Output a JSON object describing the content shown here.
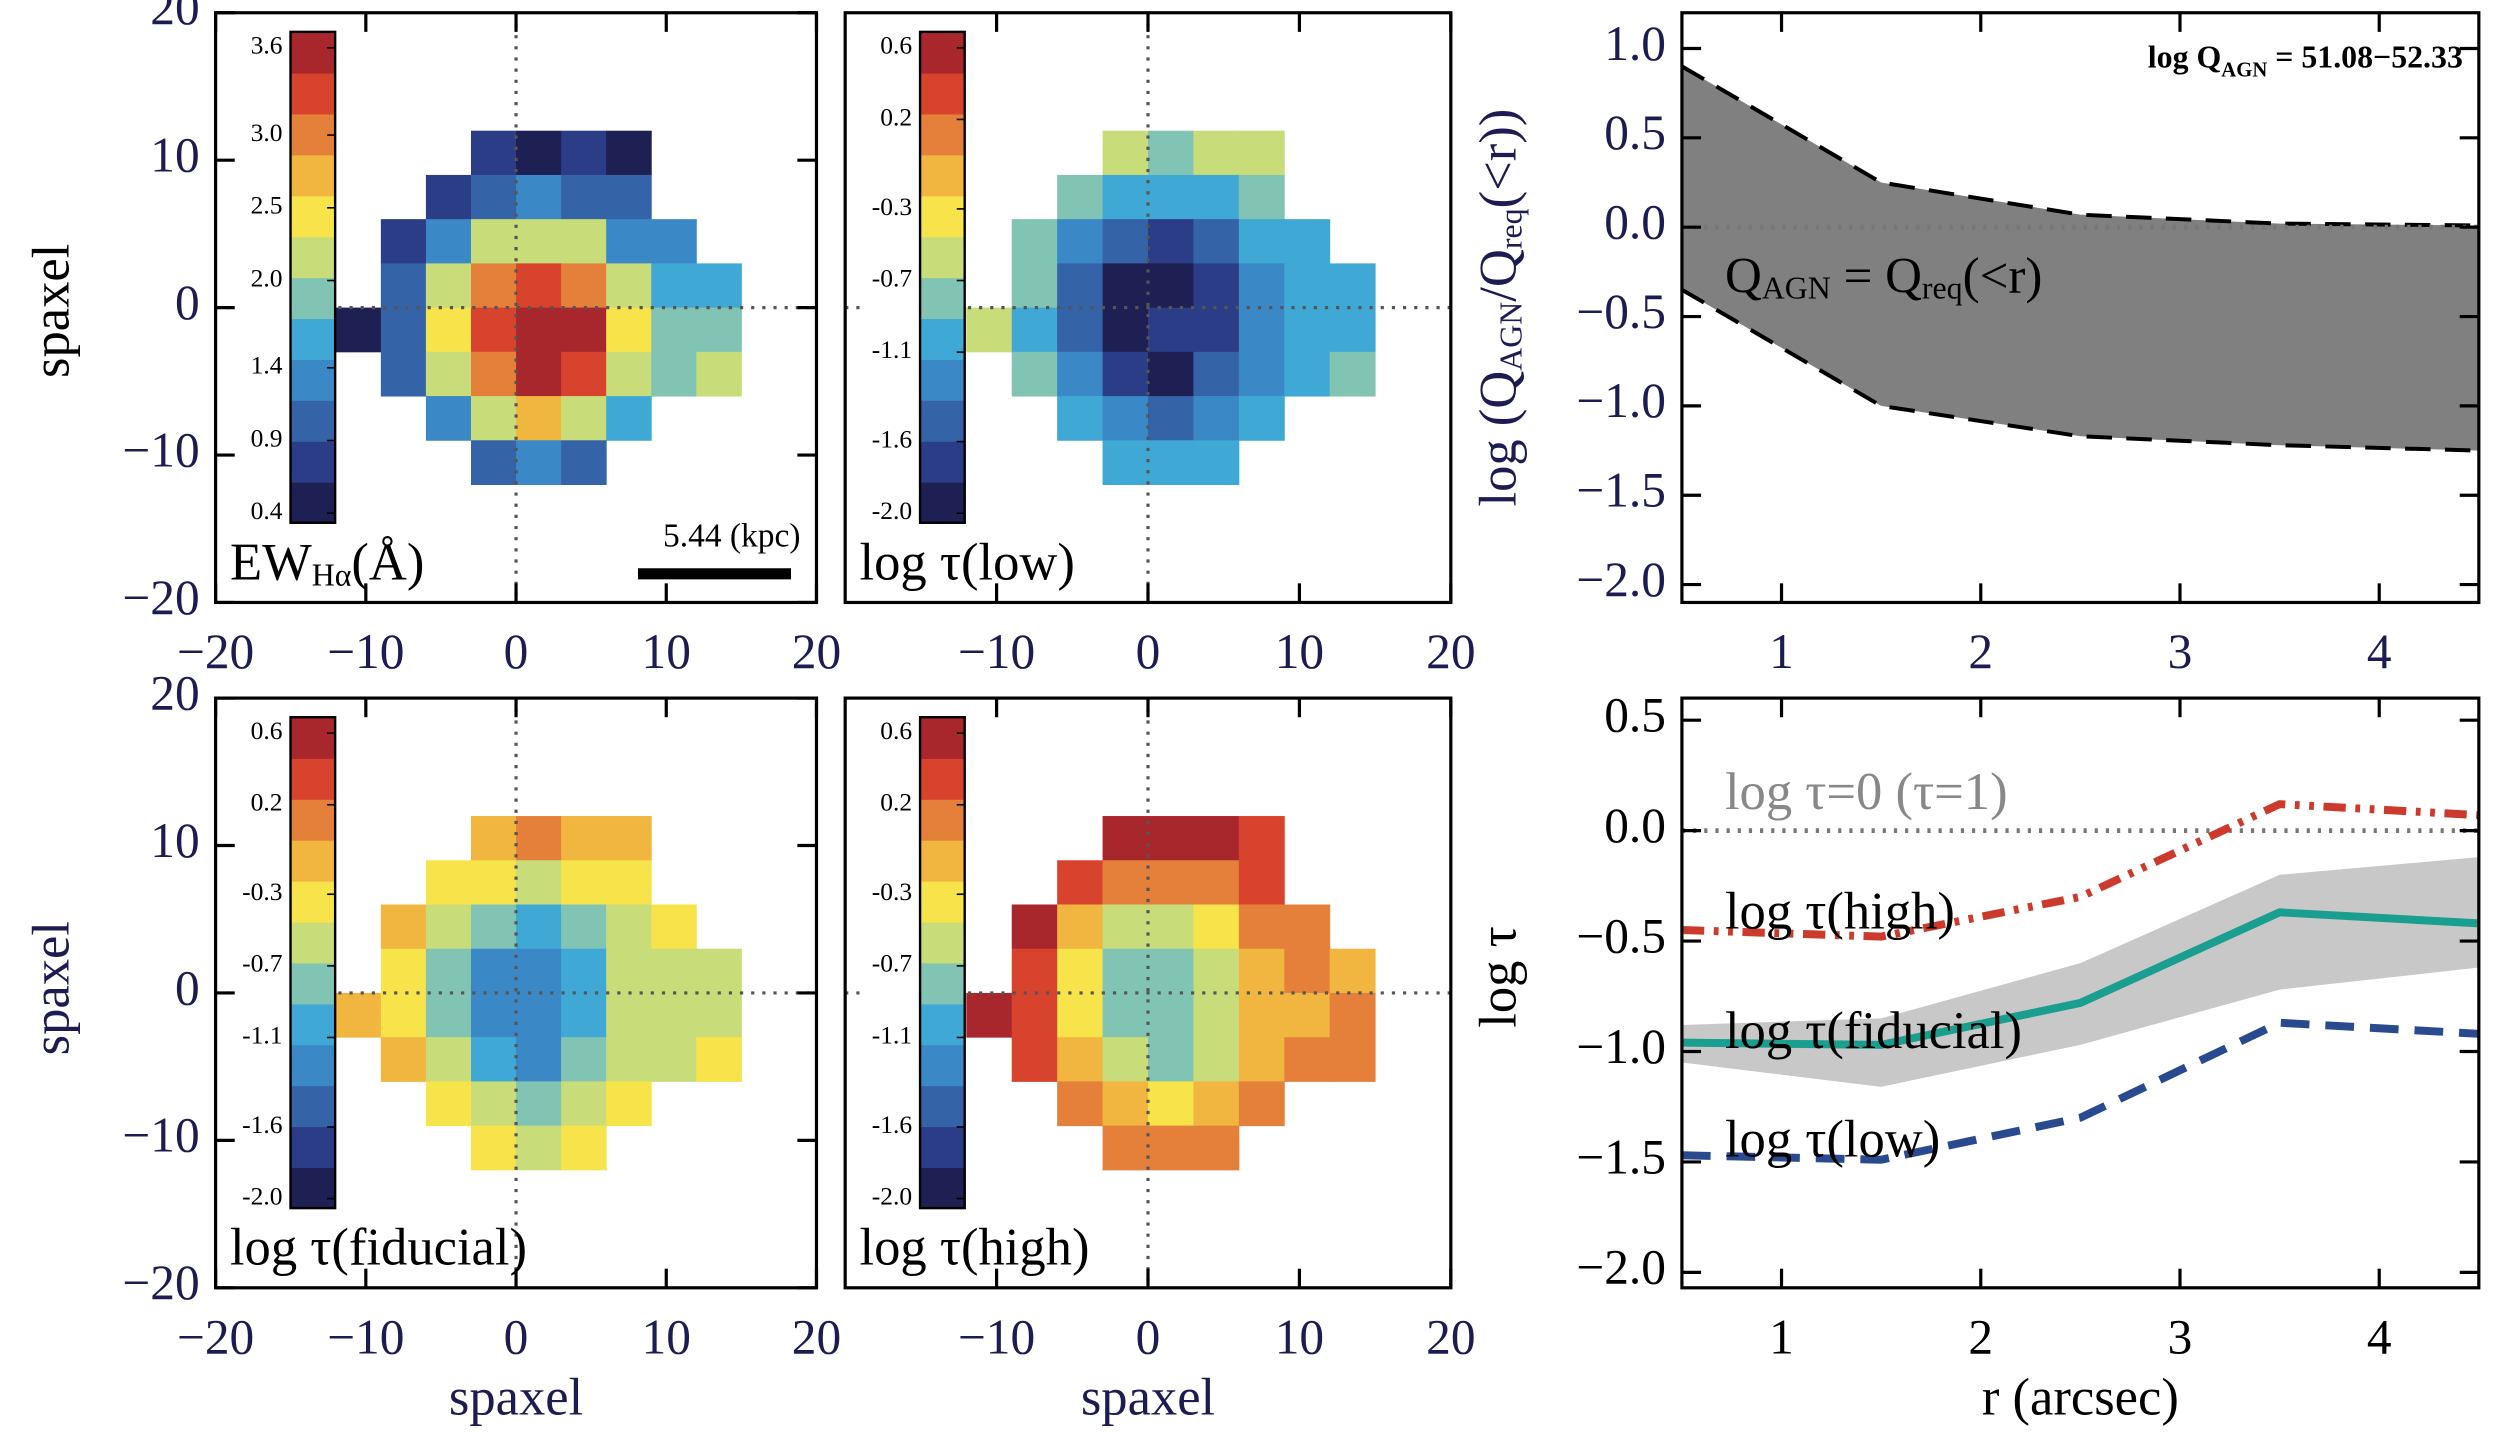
{
  "chart_data": [
    {
      "type": "heatmap",
      "xlim": [
        -20,
        20
      ],
      "ylim": [
        -20,
        20
      ],
      "xticks": [
        {
          "value": -20,
          "label": "−20"
        },
        {
          "value": -10,
          "label": "−10"
        },
        0,
        10,
        20
      ],
      "yticks": [
        {
          "value": -20,
          "label": "−20"
        },
        {
          "value": -10,
          "label": "−10"
        },
        0,
        10,
        20
      ],
      "ylabel": "spaxel",
      "crosshair": [
        0,
        0
      ],
      "xbins": [
        -12,
        -9,
        -6,
        -3,
        0,
        3,
        6,
        9,
        12,
        15
      ],
      "ybins": [
        12,
        9,
        6,
        3,
        0,
        -3,
        -6,
        -9,
        -12
      ],
      "z": [
        [
          null,
          null,
          null,
          0.7,
          0.6,
          0.7,
          0.6,
          null,
          null
        ],
        [
          null,
          null,
          0.9,
          1.2,
          1.3,
          1.2,
          1.0,
          null,
          null
        ],
        [
          null,
          0.8,
          1.4,
          2.0,
          2.2,
          2.0,
          1.4,
          1.4,
          null
        ],
        [
          null,
          1.0,
          2.0,
          2.9,
          3.2,
          3.0,
          2.1,
          1.6,
          1.5
        ],
        [
          0.6,
          1.1,
          2.3,
          3.3,
          3.6,
          3.4,
          2.4,
          1.8,
          1.9
        ],
        [
          null,
          1.0,
          2.1,
          3.0,
          3.4,
          3.1,
          2.2,
          1.9,
          2.1
        ],
        [
          null,
          null,
          1.3,
          2.2,
          2.6,
          2.2,
          1.5,
          null,
          null
        ],
        [
          null,
          null,
          null,
          1.1,
          1.3,
          1.0,
          null,
          null,
          null
        ]
      ],
      "clim": [
        0.4,
        3.6
      ],
      "colors": [
        "#1e1f52",
        "#2b3d86",
        "#3563a8",
        "#3a88c6",
        "#3fa8d4",
        "#82c4b4",
        "#c8dc7a",
        "#f6e44a",
        "#f0b640",
        "#e5803a",
        "#d8432e",
        "#a8272c"
      ],
      "colorbar_ticks": [
        0.4,
        0.9,
        1.4,
        {
          "value": 2,
          "label": "2.0"
        },
        2.5,
        {
          "value": 3,
          "label": "3.0"
        },
        3.6
      ],
      "label": [
        "EW",
        "Hα",
        "(Å)"
      ],
      "scale_bar": "5.44 (kpc)"
    },
    {
      "type": "heatmap",
      "xlim": [
        -20,
        20
      ],
      "ylim": [
        -20,
        20
      ],
      "xticks": [
        {
          "value": -10,
          "label": "−10"
        },
        0,
        10,
        20
      ],
      "crosshair": [
        0,
        0
      ],
      "xbins": [
        -12,
        -9,
        -6,
        -3,
        0,
        3,
        6,
        9,
        12,
        15
      ],
      "ybins": [
        12,
        9,
        6,
        3,
        0,
        -3,
        -6,
        -9,
        -12
      ],
      "z": [
        [
          null,
          null,
          null,
          -0.6,
          -0.8,
          -0.6,
          -0.6,
          null,
          null
        ],
        [
          null,
          null,
          -0.9,
          -1.0,
          -1.1,
          -1.0,
          -0.9,
          null,
          null
        ],
        [
          null,
          -0.8,
          -1.2,
          -1.5,
          -1.6,
          -1.4,
          -1.1,
          -1.0,
          null
        ],
        [
          null,
          -0.9,
          -1.4,
          -1.8,
          -1.9,
          -1.6,
          -1.2,
          -1.1,
          -1.1
        ],
        [
          -0.7,
          -1.0,
          -1.5,
          -1.9,
          -1.7,
          -1.7,
          -1.3,
          -1.1,
          -1.0
        ],
        [
          null,
          -0.8,
          -1.3,
          -1.7,
          -1.8,
          -1.5,
          -1.2,
          -1.1,
          -0.9
        ],
        [
          null,
          null,
          -1.0,
          -1.3,
          -1.4,
          -1.2,
          -1.0,
          null,
          null
        ],
        [
          null,
          null,
          null,
          -1.0,
          -1.1,
          -1.0,
          null,
          null,
          null
        ]
      ],
      "clim": [
        -2.0,
        0.6
      ],
      "colors": [
        "#1e1f52",
        "#2b3d86",
        "#3563a8",
        "#3a88c6",
        "#3fa8d4",
        "#82c4b4",
        "#c8dc7a",
        "#f6e44a",
        "#f0b640",
        "#e5803a",
        "#d8432e",
        "#a8272c"
      ],
      "colorbar_ticks": [
        0.6,
        0.2,
        -0.3,
        -0.7,
        -1.1,
        -1.6,
        {
          "value": -2,
          "label": "-2.0"
        }
      ],
      "label": [
        "log τ(low)"
      ]
    },
    {
      "type": "heatmap",
      "xlim": [
        -20,
        20
      ],
      "ylim": [
        -20,
        20
      ],
      "xticks": [
        {
          "value": -20,
          "label": "−20"
        },
        {
          "value": -10,
          "label": "−10"
        },
        0,
        10,
        20
      ],
      "yticks": [
        {
          "value": -20,
          "label": "−20"
        },
        {
          "value": -10,
          "label": "−10"
        },
        0,
        10,
        20
      ],
      "xlabel": "spaxel",
      "ylabel": "spaxel",
      "crosshair": [
        0,
        0
      ],
      "xbins": [
        -12,
        -9,
        -6,
        -3,
        0,
        3,
        6,
        9,
        12,
        15
      ],
      "ybins": [
        12,
        9,
        6,
        3,
        0,
        -3,
        -6,
        -9,
        -12
      ],
      "z": [
        [
          null,
          null,
          null,
          -0.1,
          0.0,
          -0.1,
          -0.2,
          null,
          null
        ],
        [
          null,
          null,
          -0.3,
          -0.4,
          -0.5,
          -0.4,
          -0.3,
          null,
          null
        ],
        [
          null,
          -0.2,
          -0.6,
          -0.9,
          -1.0,
          -0.8,
          -0.5,
          -0.4,
          null
        ],
        [
          null,
          -0.3,
          -0.8,
          -1.2,
          -1.3,
          -1.0,
          -0.6,
          -0.5,
          -0.6
        ],
        [
          -0.2,
          -0.4,
          -0.9,
          -1.3,
          -1.2,
          -1.1,
          -0.7,
          -0.6,
          -0.5
        ],
        [
          null,
          -0.2,
          -0.7,
          -1.1,
          -1.2,
          -0.9,
          -0.6,
          -0.5,
          -0.4
        ],
        [
          null,
          null,
          -0.4,
          -0.7,
          -0.8,
          -0.6,
          -0.4,
          null,
          null
        ],
        [
          null,
          null,
          null,
          -0.4,
          -0.5,
          -0.4,
          null,
          null,
          null
        ]
      ],
      "clim": [
        -2.0,
        0.6
      ],
      "colors": [
        "#1e1f52",
        "#2b3d86",
        "#3563a8",
        "#3a88c6",
        "#3fa8d4",
        "#82c4b4",
        "#c8dc7a",
        "#f6e44a",
        "#f0b640",
        "#e5803a",
        "#d8432e",
        "#a8272c"
      ],
      "colorbar_ticks": [
        0.6,
        0.2,
        -0.3,
        -0.7,
        -1.1,
        -1.6,
        {
          "value": -2,
          "label": "-2.0"
        }
      ],
      "label": [
        "log τ(fiducial)"
      ]
    },
    {
      "type": "heatmap",
      "xlim": [
        -20,
        20
      ],
      "ylim": [
        -20,
        20
      ],
      "xticks": [
        {
          "value": -10,
          "label": "−10"
        },
        0,
        10,
        20
      ],
      "xlabel": "spaxel",
      "crosshair": [
        0,
        0
      ],
      "xbins": [
        -12,
        -9,
        -6,
        -3,
        0,
        3,
        6,
        9,
        12,
        15
      ],
      "ybins": [
        12,
        9,
        6,
        3,
        0,
        -3,
        -6,
        -9,
        -12
      ],
      "z": [
        [
          null,
          null,
          null,
          0.5,
          0.5,
          0.4,
          0.3,
          null,
          null
        ],
        [
          null,
          null,
          0.3,
          0.1,
          0.0,
          0.1,
          0.2,
          null,
          null
        ],
        [
          null,
          0.4,
          -0.1,
          -0.5,
          -0.6,
          -0.4,
          0.0,
          0.1,
          null
        ],
        [
          null,
          0.3,
          -0.3,
          -0.8,
          -0.9,
          -0.6,
          -0.1,
          0.0,
          -0.1
        ],
        [
          0.4,
          0.2,
          -0.4,
          -0.9,
          -0.8,
          -0.7,
          -0.2,
          -0.1,
          0.0
        ],
        [
          null,
          0.3,
          -0.2,
          -0.7,
          -0.8,
          -0.5,
          -0.1,
          0.0,
          0.1
        ],
        [
          null,
          null,
          0.1,
          -0.2,
          -0.3,
          -0.1,
          0.1,
          null,
          null
        ],
        [
          null,
          null,
          null,
          0.1,
          0.0,
          0.1,
          null,
          null,
          null
        ]
      ],
      "clim": [
        -2.0,
        0.6
      ],
      "colors": [
        "#1e1f52",
        "#2b3d86",
        "#3563a8",
        "#3a88c6",
        "#3fa8d4",
        "#82c4b4",
        "#c8dc7a",
        "#f6e44a",
        "#f0b640",
        "#e5803a",
        "#d8432e",
        "#a8272c"
      ],
      "colorbar_ticks": [
        0.6,
        0.2,
        -0.3,
        -0.7,
        -1.1,
        -1.6,
        {
          "value": -2,
          "label": "-2.0"
        }
      ],
      "label": [
        "log τ(high)"
      ]
    },
    {
      "type": "band",
      "xlim": [
        0.5,
        4.5
      ],
      "ylim": [
        -2.1,
        1.2
      ],
      "xticks": [
        1,
        2,
        3,
        4
      ],
      "yticks": [
        {
          "value": -2,
          "label": "−2.0"
        },
        {
          "value": -1.5,
          "label": "−1.5"
        },
        {
          "value": -1,
          "label": "−1.0"
        },
        {
          "value": -0.5,
          "label": "−0.5"
        },
        {
          "value": 0,
          "label": "0.0"
        },
        0.5,
        {
          "value": 1,
          "label": "1.0"
        }
      ],
      "ylabel": [
        "log (Q",
        "AGN",
        "/Q",
        "req",
        "(<r))"
      ],
      "x": [
        0.5,
        1.5,
        2.5,
        3.5,
        4.5
      ],
      "band_upper": [
        0.9,
        0.25,
        0.07,
        0.02,
        0.01
      ],
      "band_lower": [
        -0.35,
        -1.0,
        -1.17,
        -1.22,
        -1.25
      ],
      "band_color": "#808080",
      "reference_y": 0,
      "reference_label": [
        "Q",
        "AGN",
        " = Q",
        "req",
        "(<r)"
      ],
      "annotation": [
        "log Q",
        "AGN",
        " = 51.08−52.33"
      ]
    },
    {
      "type": "line",
      "xlim": [
        0.5,
        4.5
      ],
      "ylim": [
        -2.07,
        0.6
      ],
      "xticks": [
        1,
        2,
        3,
        4
      ],
      "yticks": [
        {
          "value": -2,
          "label": "−2.0"
        },
        {
          "value": -1.5,
          "label": "−1.5"
        },
        {
          "value": -1,
          "label": "−1.0"
        },
        {
          "value": -0.5,
          "label": "−0.5"
        },
        {
          "value": 0,
          "label": "0.0"
        },
        0.5
      ],
      "xlabel": "r (arcsec)",
      "ylabel": [
        "log τ"
      ],
      "x": [
        0.5,
        1.5,
        2.5,
        3.5,
        4.5
      ],
      "band_upper": [
        -0.88,
        -0.85,
        -0.6,
        -0.2,
        -0.12
      ],
      "band_lower": [
        -1.05,
        -1.16,
        -0.97,
        -0.72,
        -0.62
      ],
      "band_color": "#c8c8c8",
      "reference_y": 0,
      "reference_label": [
        "log τ=0 (τ=1)"
      ],
      "series": [
        {
          "name": "log τ(high)",
          "color": "#cc3a2e",
          "style": "dash-dot-dot",
          "values": [
            -0.45,
            -0.48,
            -0.3,
            0.12,
            0.07
          ]
        },
        {
          "name": "log τ(fiducial)",
          "color": "#1a9e8f",
          "style": "solid",
          "values": [
            -0.96,
            -0.97,
            -0.78,
            -0.37,
            -0.42
          ]
        },
        {
          "name": "log τ(low)",
          "color": "#2a4a8f",
          "style": "dashed",
          "values": [
            -1.47,
            -1.49,
            -1.3,
            -0.87,
            -0.92
          ]
        }
      ]
    }
  ]
}
